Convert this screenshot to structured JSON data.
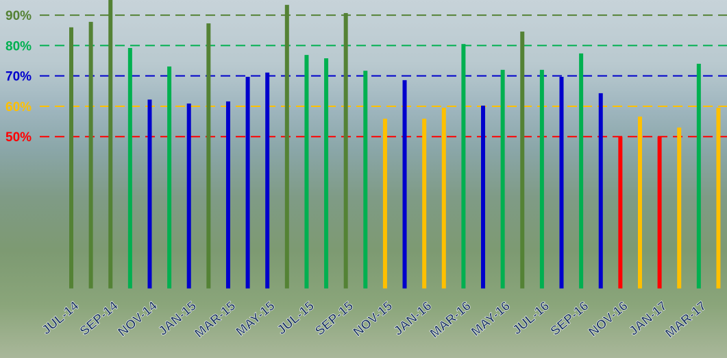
{
  "chart_data": {
    "type": "bar",
    "categories": [
      "JUL-14",
      null,
      "SEP-14",
      null,
      "NOV-14",
      null,
      "JAN-15",
      null,
      "MAR-15",
      null,
      "MAY-15",
      null,
      "JUL-15",
      null,
      "SEP-15",
      null,
      "NOV-15",
      null,
      "JAN-16",
      null,
      "MAR-16",
      null,
      "MAY-16",
      null,
      "JUL-16",
      null,
      "SEP-16",
      null,
      "NOV-16",
      null,
      "JAN-17",
      null,
      "MAR-17",
      null
    ],
    "values": [
      86.0,
      87.8,
      95.0,
      79.2,
      62.2,
      73.1,
      60.9,
      87.3,
      61.6,
      69.7,
      71.1,
      93.4,
      76.9,
      75.8,
      90.7,
      71.7,
      55.9,
      68.6,
      55.9,
      59.5,
      80.5,
      60.2,
      72.0,
      84.6,
      72.0,
      69.7,
      77.4,
      64.3,
      50.0,
      56.6,
      50.0,
      53.0,
      74.0,
      59.5
    ],
    "colors": [
      "#548235",
      "#548235",
      "#548235",
      "#00b050",
      "#0000cc",
      "#00b050",
      "#0000cc",
      "#548235",
      "#0000cc",
      "#0000cc",
      "#0000cc",
      "#548235",
      "#00b050",
      "#00b050",
      "#548235",
      "#00b050",
      "#ffc000",
      "#0000cc",
      "#ffc000",
      "#ffc000",
      "#00b050",
      "#0000cc",
      "#00b050",
      "#548235",
      "#00b050",
      "#0000cc",
      "#00b050",
      "#0000cc",
      "#ff0000",
      "#ffc000",
      "#ff0000",
      "#ffc000",
      "#00b050",
      "#ffc000"
    ],
    "ylim": [
      -1,
      95
    ],
    "yticks": [
      {
        "value": 50,
        "label": "50%"
      },
      {
        "value": 60,
        "label": "60%"
      },
      {
        "value": 70,
        "label": "70%"
      },
      {
        "value": 80,
        "label": "80%"
      },
      {
        "value": 90,
        "label": "90%"
      }
    ],
    "ytick_colors": [
      "#ff0000",
      "#ffc000",
      "#0000cc",
      "#00b050",
      "#548235"
    ],
    "grid": true
  }
}
